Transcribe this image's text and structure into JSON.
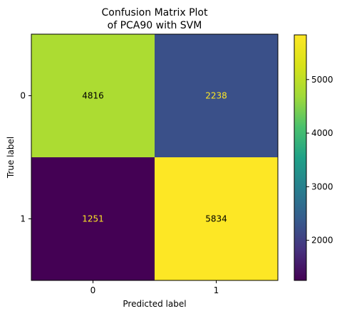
{
  "chart_data": {
    "type": "heatmap",
    "title_lines": [
      "Confusion Matrix Plot",
      "of PCA90 with SVM"
    ],
    "xlabel": "Predicted label",
    "ylabel": "True label",
    "x_categories": [
      "0",
      "1"
    ],
    "y_categories": [
      "0",
      "1"
    ],
    "values": [
      [
        4816,
        2238
      ],
      [
        1251,
        5834
      ]
    ],
    "colormap": "viridis",
    "colorbar": {
      "range": [
        1251,
        5834
      ],
      "ticks": [
        2000,
        3000,
        4000,
        5000
      ],
      "tick_labels": [
        "2000",
        "3000",
        "4000",
        "5000"
      ]
    },
    "text_colors": {
      "on_light": "#000000",
      "on_dark": "#fde725"
    }
  }
}
